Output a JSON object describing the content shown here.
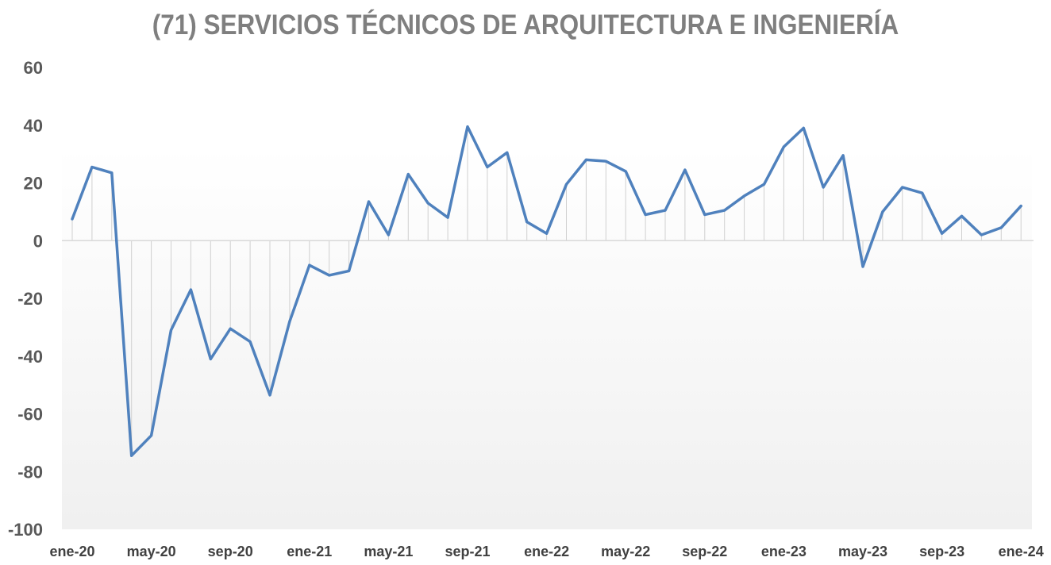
{
  "chart_data": {
    "type": "line",
    "title": "(71) SERVICIOS TÉCNICOS DE ARQUITECTURA E INGENIERÍA",
    "xlabel": "",
    "ylabel": "",
    "ylim": [
      -100,
      60
    ],
    "yticks": [
      -100,
      -80,
      -60,
      -40,
      -20,
      0,
      20,
      40,
      60
    ],
    "x_tick_labels": [
      "ene-20",
      "may-20",
      "sep-20",
      "ene-21",
      "may-21",
      "sep-21",
      "ene-22",
      "may-22",
      "sep-22",
      "ene-23",
      "may-23",
      "sep-23",
      "ene-24"
    ],
    "x_tick_every": 4,
    "grid": false,
    "drop_lines": true,
    "line_color": "#4f81bd",
    "series": [
      {
        "values": [
          7.5,
          25.5,
          23.5,
          -74.5,
          -67.5,
          -31,
          -17,
          -41,
          -30.5,
          -35,
          -53.5,
          -28,
          -8.5,
          -12,
          -10.5,
          13.5,
          2,
          23,
          13,
          8,
          39.5,
          25.5,
          30.5,
          6.5,
          2.5,
          19.5,
          28,
          27.5,
          24,
          9,
          10.5,
          24.5,
          9,
          10.5,
          15.5,
          19.5,
          32.5,
          39,
          18.5,
          29.5,
          -9,
          10,
          18.5,
          16.5,
          2.5,
          8.5,
          2,
          4.5,
          12
        ]
      }
    ]
  }
}
